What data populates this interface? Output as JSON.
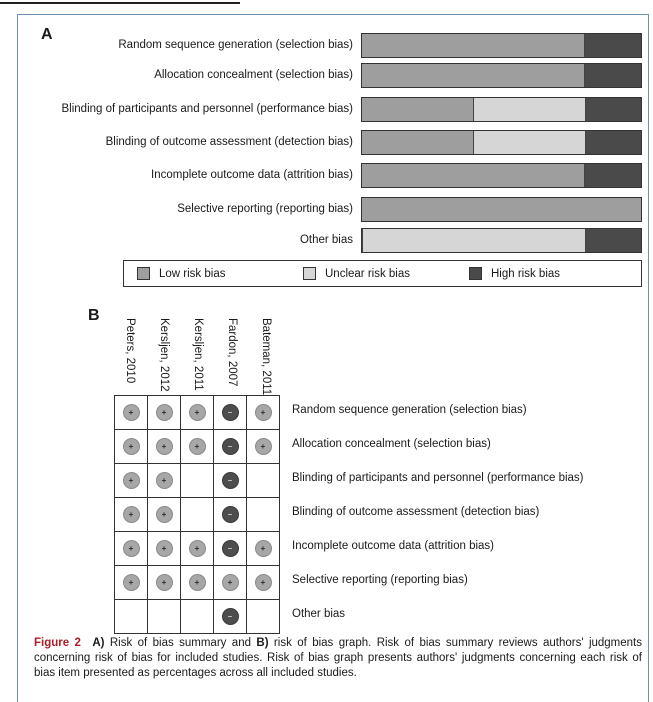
{
  "colors": {
    "low": "#9e9e9e",
    "unclear": "#d6d6d6",
    "high": "#4a4a4a",
    "frame": "#6f8fb4",
    "figure_label": "#b01c2a"
  },
  "panel_a": {
    "label": "A"
  },
  "panel_b": {
    "label": "B"
  },
  "legend": {
    "low": "Low risk bias",
    "unclear": "Unclear risk bias",
    "high": "High risk bias"
  },
  "chart_data": [
    {
      "type": "bar",
      "orientation": "horizontal",
      "stacked": true,
      "unit": "percent",
      "categories": [
        "Random sequence generation (selection bias)",
        "Allocation concealment (selection bias)",
        "Blinding of participants and personnel (performance bias)",
        "Blinding of outcome assessment (detection bias)",
        "Incomplete outcome data (attrition bias)",
        "Selective reporting (reporting bias)",
        "Other bias"
      ],
      "series": [
        {
          "name": "Low risk bias",
          "values": [
            80,
            80,
            40,
            40,
            80,
            100,
            0
          ]
        },
        {
          "name": "Unclear risk bias",
          "values": [
            0,
            0,
            40,
            40,
            0,
            0,
            80
          ]
        },
        {
          "name": "High risk bias",
          "values": [
            20,
            20,
            20,
            20,
            20,
            0,
            20
          ]
        }
      ],
      "xlim": [
        0,
        100
      ],
      "legend_position": "bottom"
    },
    {
      "type": "table",
      "studies": [
        "Peters, 2010",
        "Kersljen, 2012",
        "Kersljen, 2011",
        "Fardon, 2007",
        "Bateman, 2011"
      ],
      "domains": [
        "Random sequence generation (selection bias)",
        "Allocation concealment (selection bias)",
        "Blinding of participants and personnel (performance bias)",
        "Blinding of outcome assessment (detection bias)",
        "Incomplete outcome data (attrition bias)",
        "Selective reporting (reporting bias)",
        "Other bias"
      ],
      "judgments": [
        [
          "low",
          "low",
          "low",
          "high",
          "low"
        ],
        [
          "low",
          "low",
          "low",
          "high",
          "low"
        ],
        [
          "low",
          "low",
          "",
          "high",
          ""
        ],
        [
          "low",
          "low",
          "",
          "high",
          ""
        ],
        [
          "low",
          "low",
          "low",
          "high",
          "low"
        ],
        [
          "low",
          "low",
          "low",
          "low",
          "low"
        ],
        [
          "",
          "",
          "",
          "high",
          ""
        ]
      ]
    }
  ],
  "caption": {
    "figure_label": "Figure 2",
    "text_before_a": "",
    "a_marker": "A)",
    "a_text": " Risk of bias summary and ",
    "b_marker": "B)",
    "b_text": " risk of bias graph. Risk of bias summary reviews authors' judgments concerning risk of bias for included studies. Risk of bias graph presents authors' judgments concerning each risk of bias item presented as percentages across all included studies."
  }
}
